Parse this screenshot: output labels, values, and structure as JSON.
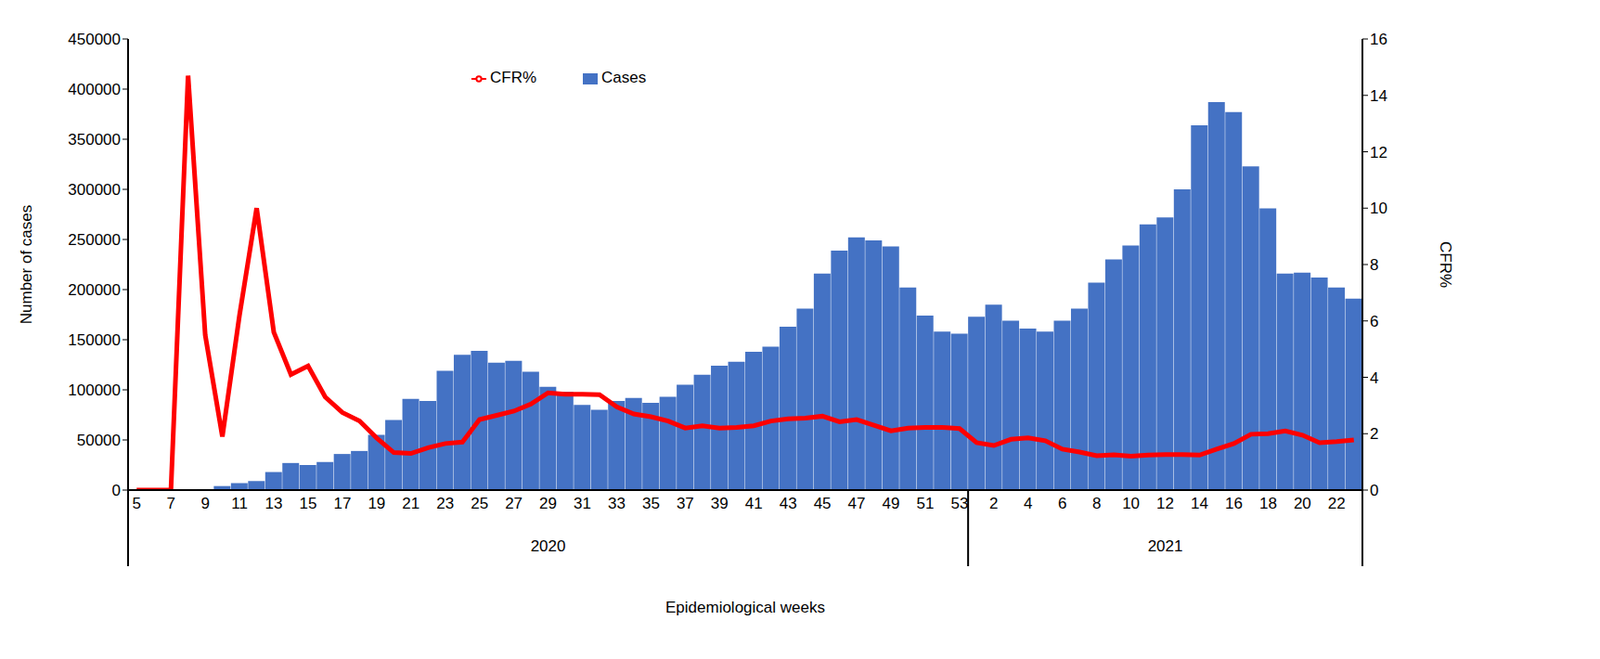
{
  "chart_data": {
    "type": "bar",
    "x_label": "Epidemiological weeks",
    "y_label": "Number of cases",
    "y2_label": "CFR%",
    "categories": [
      "5",
      null,
      "7",
      null,
      "9",
      null,
      "11",
      null,
      "13",
      null,
      "15",
      null,
      "17",
      null,
      "19",
      null,
      "21",
      null,
      "23",
      null,
      "25",
      null,
      "27",
      null,
      "29",
      null,
      "31",
      null,
      "33",
      null,
      "35",
      null,
      "37",
      null,
      "39",
      null,
      "41",
      null,
      "43",
      null,
      "45",
      null,
      "47",
      null,
      "49",
      null,
      "51",
      null,
      "53",
      null,
      "2",
      null,
      "4",
      null,
      "6",
      null,
      "8",
      null,
      "10",
      null,
      "12",
      null,
      "14",
      null,
      "16",
      null,
      "18",
      null,
      "20",
      null,
      "22",
      null
    ],
    "x_groups": [
      {
        "label": "2020",
        "count": 49
      },
      {
        "label": "2021",
        "count": 23
      }
    ],
    "series": [
      {
        "name": "Cases",
        "type": "bar",
        "color": "#4472c4",
        "values": [
          0,
          0,
          0,
          500,
          1000,
          4000,
          7000,
          9000,
          18000,
          27000,
          25000,
          28000,
          36000,
          39000,
          55000,
          70000,
          91000,
          89000,
          119000,
          135000,
          139000,
          127000,
          129000,
          118000,
          103000,
          98000,
          85000,
          80000,
          89000,
          92000,
          87000,
          93000,
          105000,
          115000,
          124000,
          128000,
          138000,
          143000,
          163000,
          181000,
          216000,
          239000,
          252000,
          249000,
          243000,
          202000,
          174000,
          158000,
          156000,
          173000,
          185000,
          169000,
          161000,
          158000,
          169000,
          181000,
          207000,
          230000,
          244000,
          265000,
          272000,
          300000,
          364000,
          387000,
          377000,
          323000,
          281000,
          216000,
          217000,
          212000,
          202000,
          191000
        ]
      },
      {
        "name": "CFR%",
        "type": "line",
        "color": "#ff0000",
        "axis": "y2",
        "values": [
          0,
          0,
          0,
          14.7,
          5.5,
          1.9,
          6.2,
          10,
          5.6,
          4.1,
          4.4,
          3.3,
          2.75,
          2.45,
          1.85,
          1.33,
          1.3,
          1.5,
          1.65,
          1.7,
          2.5,
          2.65,
          2.8,
          3.05,
          3.45,
          3.4,
          3.4,
          3.38,
          2.95,
          2.7,
          2.6,
          2.45,
          2.2,
          2.28,
          2.2,
          2.22,
          2.28,
          2.45,
          2.53,
          2.55,
          2.62,
          2.42,
          2.5,
          2.3,
          2.1,
          2.2,
          2.22,
          2.22,
          2.18,
          1.68,
          1.58,
          1.8,
          1.85,
          1.75,
          1.45,
          1.35,
          1.22,
          1.25,
          1.2,
          1.24,
          1.26,
          1.26,
          1.24,
          1.45,
          1.65,
          1.98,
          2.0,
          2.1,
          1.95,
          1.68,
          1.72,
          1.78
        ]
      }
    ],
    "ylim": [
      0,
      450000
    ],
    "yticks": [
      0,
      50000,
      100000,
      150000,
      200000,
      250000,
      300000,
      350000,
      400000,
      450000
    ],
    "y2lim": [
      0,
      16
    ],
    "y2ticks": [
      0,
      2,
      4,
      6,
      8,
      10,
      12,
      14,
      16
    ],
    "legend": "top",
    "grid": false
  }
}
